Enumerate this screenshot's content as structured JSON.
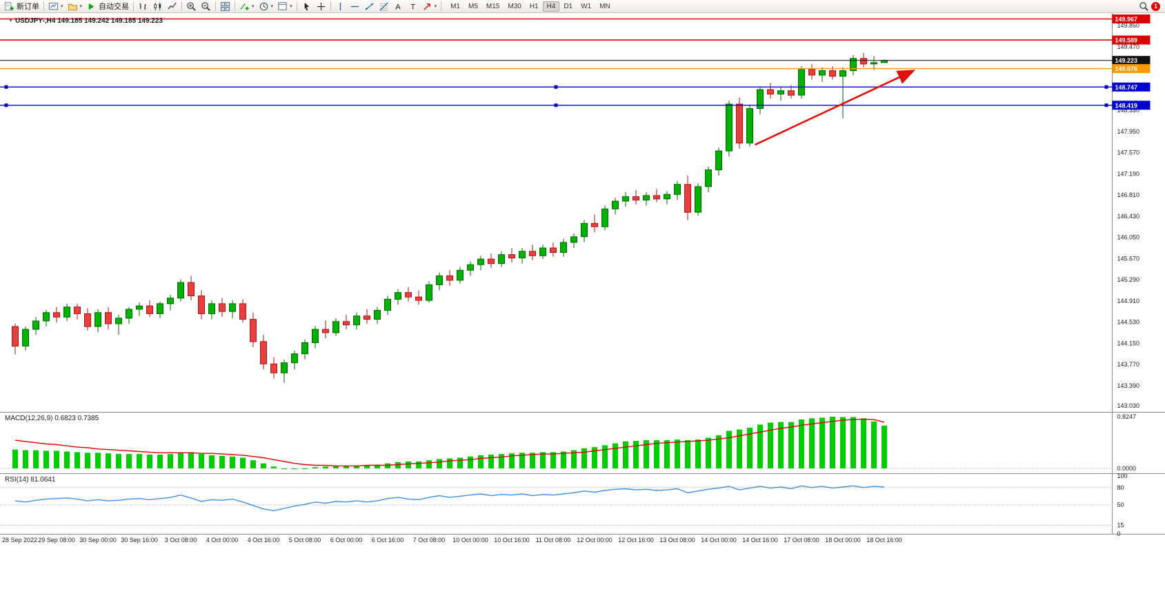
{
  "toolbar": {
    "new_order_label": "新订单",
    "auto_trading_label": "自动交易",
    "timeframes": [
      "M1",
      "M5",
      "M15",
      "M30",
      "H1",
      "H4",
      "D1",
      "W1",
      "MN"
    ],
    "active_timeframe": "H4",
    "notification_count": "1"
  },
  "chart_data": {
    "type": "candlestick",
    "symbol": "USDJPY-",
    "timeframe": "H4",
    "title_line": "USDJPY-,H4  149.185 149.242 149.185 149.223",
    "ohlc_display": {
      "open": "149.185",
      "high": "149.242",
      "low": "149.185",
      "close": "149.223"
    },
    "x_labels": [
      "28 Sep 2022",
      "29 Sep 08:00",
      "30 Sep 00:00",
      "30 Sep 16:00",
      "3 Oct 08:00",
      "4 Oct 00:00",
      "4 Oct 16:00",
      "5 Oct 08:00",
      "6 Oct 00:00",
      "6 Oct 16:00",
      "7 Oct 08:00",
      "10 Oct 00:00",
      "10 Oct 16:00",
      "11 Oct 08:00",
      "12 Oct 00:00",
      "12 Oct 16:00",
      "13 Oct 08:00",
      "14 Oct 00:00",
      "14 Oct 16:00",
      "17 Oct 08:00",
      "18 Oct 00:00",
      "18 Oct 16:00"
    ],
    "candles_per_label": 4,
    "price_axis": {
      "ticks": [
        149.85,
        149.47,
        148.33,
        147.95,
        147.57,
        147.19,
        146.81,
        146.43,
        146.05,
        145.67,
        145.29,
        144.91,
        144.53,
        144.15,
        143.77,
        143.39,
        143.03
      ]
    },
    "hlines": [
      {
        "price": 149.967,
        "color": "#dd0000",
        "label_bg": "#dd0000",
        "width": 1.6
      },
      {
        "price": 149.589,
        "color": "#dd0000",
        "label_bg": "#dd0000",
        "width": 1.6
      },
      {
        "price": 149.223,
        "color": "#222222",
        "label_bg": "#111111",
        "width": 1.1,
        "is_current": true
      },
      {
        "price": 149.076,
        "color": "#ff9900",
        "label_bg": "#ff9900",
        "width": 1.4
      },
      {
        "price": 148.747,
        "color": "#0000cc",
        "label_bg": "#0000cc",
        "width": 1.3,
        "handles": true
      },
      {
        "price": 148.419,
        "color": "#0000cc",
        "label_bg": "#0000cc",
        "width": 1.3,
        "handles": true
      }
    ],
    "arrow": {
      "from": {
        "index": 71.5,
        "price": 147.71
      },
      "to": {
        "index": 86.7,
        "price": 149.03
      },
      "color": "#e01010"
    },
    "colors": {
      "bull": "#00b200",
      "bull_border": "#006600",
      "bear": "#e84040",
      "bear_border": "#aa1111"
    },
    "candles": [
      [
        144.45,
        144.5,
        143.95,
        144.1
      ],
      [
        144.1,
        144.45,
        144.02,
        144.4
      ],
      [
        144.4,
        144.62,
        144.3,
        144.55
      ],
      [
        144.55,
        144.75,
        144.45,
        144.7
      ],
      [
        144.7,
        144.8,
        144.52,
        144.62
      ],
      [
        144.62,
        144.86,
        144.55,
        144.8
      ],
      [
        144.8,
        144.86,
        144.58,
        144.68
      ],
      [
        144.68,
        144.78,
        144.38,
        144.45
      ],
      [
        144.45,
        144.76,
        144.35,
        144.7
      ],
      [
        144.7,
        144.8,
        144.4,
        144.5
      ],
      [
        144.5,
        144.66,
        144.3,
        144.6
      ],
      [
        144.6,
        144.8,
        144.5,
        144.76
      ],
      [
        144.76,
        144.88,
        144.64,
        144.82
      ],
      [
        144.82,
        144.92,
        144.62,
        144.68
      ],
      [
        144.68,
        144.9,
        144.6,
        144.86
      ],
      [
        144.86,
        145.02,
        144.74,
        144.96
      ],
      [
        144.96,
        145.3,
        144.9,
        145.24
      ],
      [
        145.24,
        145.36,
        144.92,
        145.0
      ],
      [
        145.0,
        145.1,
        144.58,
        144.68
      ],
      [
        144.68,
        144.92,
        144.58,
        144.86
      ],
      [
        144.86,
        144.96,
        144.62,
        144.72
      ],
      [
        144.72,
        144.92,
        144.6,
        144.86
      ],
      [
        144.86,
        144.94,
        144.52,
        144.58
      ],
      [
        144.58,
        144.7,
        144.08,
        144.18
      ],
      [
        144.18,
        144.3,
        143.68,
        143.78
      ],
      [
        143.78,
        143.9,
        143.52,
        143.62
      ],
      [
        143.62,
        143.86,
        143.44,
        143.8
      ],
      [
        143.8,
        144.02,
        143.68,
        143.96
      ],
      [
        143.96,
        144.22,
        143.86,
        144.16
      ],
      [
        144.16,
        144.46,
        144.06,
        144.4
      ],
      [
        144.4,
        144.56,
        144.24,
        144.34
      ],
      [
        144.34,
        144.6,
        144.28,
        144.54
      ],
      [
        144.54,
        144.66,
        144.4,
        144.48
      ],
      [
        144.48,
        144.7,
        144.4,
        144.64
      ],
      [
        144.64,
        144.76,
        144.5,
        144.58
      ],
      [
        144.58,
        144.8,
        144.5,
        144.74
      ],
      [
        144.74,
        145.0,
        144.66,
        144.94
      ],
      [
        144.94,
        145.12,
        144.84,
        145.06
      ],
      [
        145.06,
        145.16,
        144.9,
        144.98
      ],
      [
        144.98,
        145.1,
        144.84,
        144.92
      ],
      [
        144.92,
        145.26,
        144.88,
        145.2
      ],
      [
        145.2,
        145.42,
        145.1,
        145.36
      ],
      [
        145.36,
        145.46,
        145.18,
        145.28
      ],
      [
        145.28,
        145.52,
        145.22,
        145.46
      ],
      [
        145.46,
        145.62,
        145.36,
        145.56
      ],
      [
        145.56,
        145.72,
        145.46,
        145.66
      ],
      [
        145.66,
        145.76,
        145.5,
        145.58
      ],
      [
        145.58,
        145.8,
        145.52,
        145.74
      ],
      [
        145.74,
        145.86,
        145.6,
        145.68
      ],
      [
        145.68,
        145.86,
        145.58,
        145.8
      ],
      [
        145.8,
        145.92,
        145.64,
        145.72
      ],
      [
        145.72,
        145.92,
        145.66,
        145.86
      ],
      [
        145.86,
        145.96,
        145.7,
        145.78
      ],
      [
        145.78,
        146.02,
        145.7,
        145.96
      ],
      [
        145.96,
        146.12,
        145.86,
        146.06
      ],
      [
        146.06,
        146.36,
        145.96,
        146.3
      ],
      [
        146.3,
        146.46,
        146.14,
        146.24
      ],
      [
        146.24,
        146.62,
        146.18,
        146.56
      ],
      [
        146.56,
        146.76,
        146.46,
        146.7
      ],
      [
        146.7,
        146.86,
        146.6,
        146.78
      ],
      [
        146.78,
        146.9,
        146.64,
        146.72
      ],
      [
        146.72,
        146.86,
        146.62,
        146.8
      ],
      [
        146.8,
        146.92,
        146.68,
        146.74
      ],
      [
        146.74,
        146.88,
        146.64,
        146.82
      ],
      [
        146.82,
        147.06,
        146.72,
        147.0
      ],
      [
        147.0,
        147.16,
        146.36,
        146.5
      ],
      [
        146.5,
        147.02,
        146.44,
        146.96
      ],
      [
        146.96,
        147.32,
        146.86,
        147.26
      ],
      [
        147.26,
        147.66,
        147.16,
        147.6
      ],
      [
        147.6,
        148.5,
        147.5,
        148.44
      ],
      [
        148.44,
        148.56,
        147.64,
        147.74
      ],
      [
        147.74,
        148.42,
        147.68,
        148.36
      ],
      [
        148.36,
        148.76,
        148.26,
        148.7
      ],
      [
        148.7,
        148.82,
        148.54,
        148.62
      ],
      [
        148.62,
        148.76,
        148.5,
        148.68
      ],
      [
        148.68,
        148.78,
        148.54,
        148.6
      ],
      [
        148.6,
        149.12,
        148.54,
        149.06
      ],
      [
        149.06,
        149.16,
        148.88,
        148.96
      ],
      [
        148.96,
        149.1,
        148.84,
        149.04
      ],
      [
        149.04,
        149.12,
        148.88,
        148.94
      ],
      [
        148.94,
        149.1,
        148.18,
        149.04
      ],
      [
        149.04,
        149.32,
        148.96,
        149.26
      ],
      [
        149.26,
        149.36,
        149.1,
        149.16
      ],
      [
        149.16,
        149.3,
        149.05,
        149.185
      ],
      [
        149.185,
        149.242,
        149.185,
        149.223
      ]
    ],
    "macd": {
      "label": "MACD(12,26,9) 0.6823 0.7385",
      "scale_max": "0.8247",
      "scale_min": "0.0000",
      "hist_color": "#00cc00",
      "signal_color": "#e00000",
      "hist": [
        0.3,
        0.29,
        0.29,
        0.28,
        0.28,
        0.27,
        0.26,
        0.25,
        0.25,
        0.24,
        0.23,
        0.23,
        0.23,
        0.22,
        0.22,
        0.23,
        0.25,
        0.26,
        0.23,
        0.21,
        0.2,
        0.19,
        0.17,
        0.13,
        0.08,
        0.03,
        0.0,
        -0.01,
        0.0,
        0.02,
        0.03,
        0.04,
        0.04,
        0.05,
        0.05,
        0.06,
        0.08,
        0.1,
        0.11,
        0.11,
        0.13,
        0.15,
        0.16,
        0.17,
        0.19,
        0.21,
        0.22,
        0.23,
        0.24,
        0.25,
        0.25,
        0.26,
        0.26,
        0.27,
        0.29,
        0.32,
        0.34,
        0.37,
        0.4,
        0.43,
        0.44,
        0.45,
        0.45,
        0.45,
        0.46,
        0.45,
        0.46,
        0.49,
        0.53,
        0.6,
        0.62,
        0.65,
        0.7,
        0.73,
        0.74,
        0.74,
        0.78,
        0.8,
        0.81,
        0.8247,
        0.82,
        0.82,
        0.8,
        0.75,
        0.6823
      ],
      "signal": [
        0.45,
        0.43,
        0.41,
        0.39,
        0.38,
        0.36,
        0.34,
        0.33,
        0.31,
        0.3,
        0.29,
        0.28,
        0.27,
        0.26,
        0.25,
        0.25,
        0.25,
        0.25,
        0.24,
        0.24,
        0.23,
        0.22,
        0.21,
        0.19,
        0.17,
        0.14,
        0.11,
        0.08,
        0.06,
        0.05,
        0.05,
        0.04,
        0.04,
        0.04,
        0.05,
        0.05,
        0.05,
        0.06,
        0.07,
        0.08,
        0.09,
        0.1,
        0.12,
        0.13,
        0.14,
        0.16,
        0.17,
        0.18,
        0.2,
        0.21,
        0.22,
        0.23,
        0.23,
        0.24,
        0.25,
        0.26,
        0.28,
        0.3,
        0.32,
        0.34,
        0.36,
        0.38,
        0.4,
        0.41,
        0.42,
        0.43,
        0.44,
        0.45,
        0.47,
        0.49,
        0.52,
        0.55,
        0.58,
        0.61,
        0.64,
        0.66,
        0.69,
        0.71,
        0.73,
        0.75,
        0.77,
        0.78,
        0.785,
        0.78,
        0.7385
      ]
    },
    "rsi": {
      "label": "RSI(14) 81.0641",
      "line_color": "#3f8fdc",
      "axis_labels": [
        100,
        80,
        50,
        15,
        0
      ],
      "levels": [
        80,
        50,
        15
      ],
      "values": [
        57,
        55,
        58,
        60,
        61,
        62,
        60,
        57,
        59,
        57,
        58,
        60,
        61,
        59,
        61,
        63,
        67,
        62,
        56,
        59,
        58,
        60,
        55,
        49,
        43,
        40,
        44,
        48,
        51,
        55,
        53,
        56,
        55,
        57,
        55,
        57,
        61,
        63,
        60,
        59,
        63,
        66,
        63,
        65,
        67,
        69,
        66,
        68,
        67,
        69,
        66,
        68,
        67,
        69,
        71,
        74,
        72,
        75,
        77,
        78,
        76,
        77,
        75,
        76,
        78,
        71,
        74,
        77,
        79,
        82,
        76,
        79,
        82,
        79,
        81,
        78,
        83,
        80,
        82,
        79,
        81,
        83,
        80,
        82,
        81.0641
      ]
    }
  }
}
